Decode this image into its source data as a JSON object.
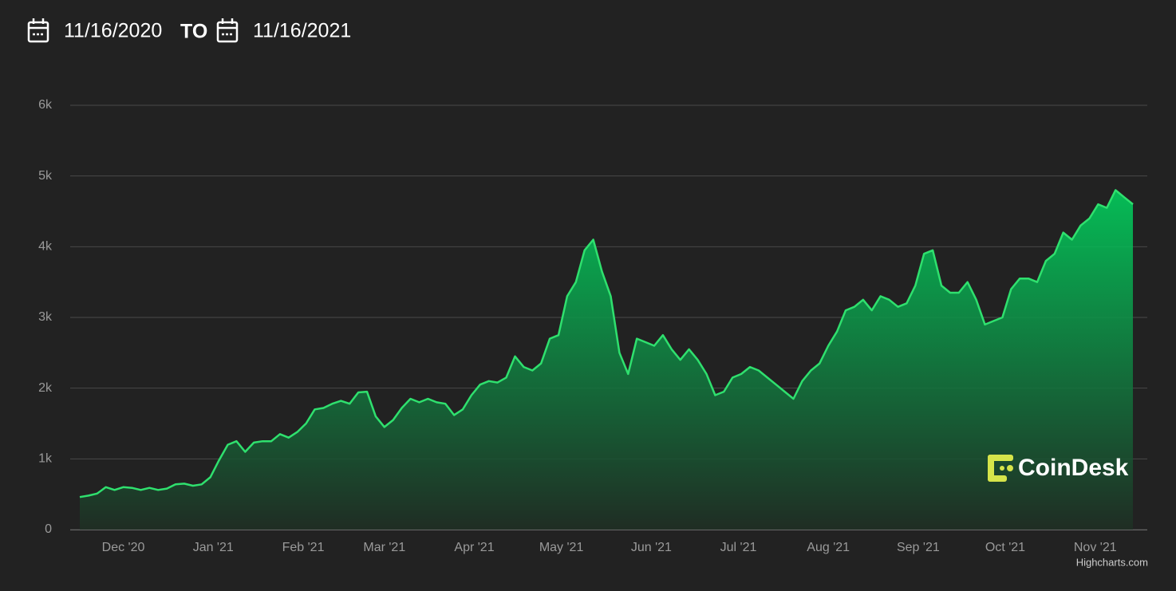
{
  "header": {
    "start_date": "11/16/2020",
    "separator": "TO",
    "end_date": "11/16/2021"
  },
  "chart_data": {
    "type": "area",
    "color": "#2fe06e",
    "values": [
      460,
      480,
      510,
      600,
      560,
      600,
      590,
      560,
      590,
      560,
      580,
      640,
      650,
      620,
      640,
      740,
      980,
      1200,
      1250,
      1100,
      1230,
      1250,
      1250,
      1350,
      1300,
      1380,
      1500,
      1700,
      1720,
      1780,
      1820,
      1780,
      1940,
      1950,
      1600,
      1450,
      1550,
      1720,
      1850,
      1800,
      1850,
      1800,
      1780,
      1620,
      1700,
      1900,
      2050,
      2100,
      2080,
      2150,
      2450,
      2300,
      2250,
      2350,
      2700,
      2750,
      3300,
      3500,
      3950,
      4100,
      3650,
      3300,
      2500,
      2200,
      2700,
      2650,
      2600,
      2750,
      2550,
      2400,
      2550,
      2400,
      2200,
      1900,
      1950,
      2150,
      2200,
      2300,
      2250,
      2150,
      2050,
      1950,
      1850,
      2100,
      2250,
      2350,
      2600,
      2800,
      3100,
      3150,
      3250,
      3100,
      3300,
      3250,
      3150,
      3200,
      3450,
      3900,
      3950,
      3450,
      3350,
      3350,
      3500,
      3250,
      2900,
      2950,
      3000,
      3400,
      3550,
      3550,
      3500,
      3800,
      3900,
      4200,
      4100,
      4300,
      4400,
      4600,
      4550,
      4800,
      4700,
      4600
    ],
    "xlim": [
      0,
      121
    ],
    "xticks": [
      {
        "value": 5,
        "label": "Dec '20"
      },
      {
        "value": 15.33,
        "label": "Jan '21"
      },
      {
        "value": 25.67,
        "label": "Feb '21"
      },
      {
        "value": 35,
        "label": "Mar '21"
      },
      {
        "value": 45.33,
        "label": "Apr '21"
      },
      {
        "value": 55.33,
        "label": "May '21"
      },
      {
        "value": 65.67,
        "label": "Jun '21"
      },
      {
        "value": 75.67,
        "label": "Jul '21"
      },
      {
        "value": 86,
        "label": "Aug '21"
      },
      {
        "value": 96.33,
        "label": "Sep '21"
      },
      {
        "value": 106.33,
        "label": "Oct '21"
      },
      {
        "value": 116.67,
        "label": "Nov '21"
      }
    ],
    "ylim": [
      0,
      6000
    ],
    "yticks": [
      0,
      {
        "value": 1000,
        "label": "1k"
      },
      {
        "value": 2000,
        "label": "2k"
      },
      {
        "value": 3000,
        "label": "3k"
      },
      {
        "value": 4000,
        "label": "4k"
      },
      {
        "value": 5000,
        "label": "5k"
      },
      {
        "value": 6000,
        "label": "6k"
      }
    ],
    "grid": true,
    "watermark": "CoinDesk",
    "credits": "Highcharts.com"
  }
}
